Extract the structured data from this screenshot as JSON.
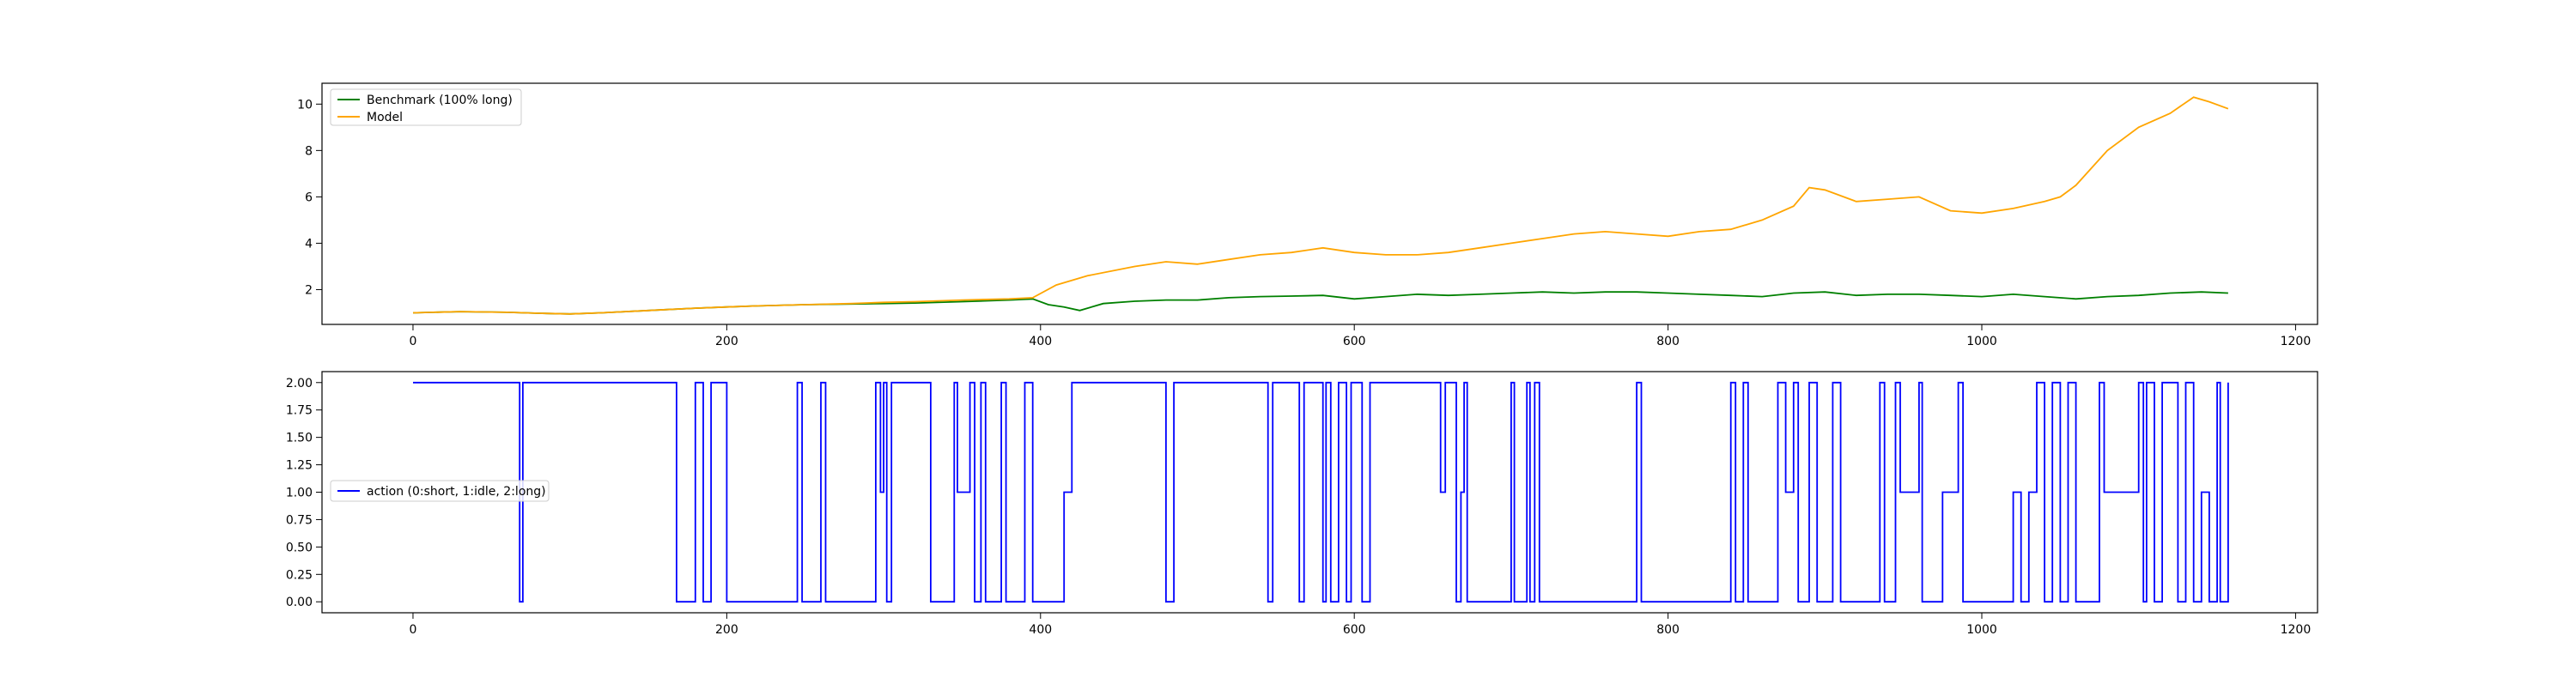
{
  "chart_data": [
    {
      "type": "line",
      "title": "",
      "xlabel": "",
      "ylabel": "",
      "xlim": [
        -58,
        1214
      ],
      "ylim": [
        0.5,
        10.9
      ],
      "xticks": [
        0,
        200,
        400,
        600,
        800,
        1000,
        1200
      ],
      "yticks": [
        2,
        4,
        6,
        8,
        10
      ],
      "xtick_labels": [
        "0",
        "200",
        "400",
        "600",
        "800",
        "1000",
        "1200"
      ],
      "ytick_labels": [
        "2",
        "4",
        "6",
        "8",
        "10"
      ],
      "grid": false,
      "legend_position": "upper-left",
      "series": [
        {
          "name": "Benchmark (100% long)",
          "color": "#008000",
          "x": [
            0,
            30,
            60,
            80,
            100,
            120,
            150,
            180,
            200,
            220,
            250,
            280,
            300,
            320,
            350,
            380,
            395,
            405,
            415,
            425,
            440,
            460,
            480,
            500,
            520,
            540,
            560,
            580,
            600,
            620,
            640,
            660,
            680,
            700,
            720,
            740,
            760,
            780,
            800,
            820,
            840,
            860,
            880,
            900,
            920,
            940,
            960,
            980,
            1000,
            1020,
            1040,
            1060,
            1080,
            1100,
            1120,
            1140,
            1157
          ],
          "values": [
            1.0,
            1.05,
            1.02,
            0.98,
            0.95,
            1.0,
            1.1,
            1.2,
            1.25,
            1.3,
            1.35,
            1.38,
            1.4,
            1.42,
            1.48,
            1.55,
            1.6,
            1.35,
            1.25,
            1.1,
            1.4,
            1.5,
            1.55,
            1.55,
            1.65,
            1.7,
            1.72,
            1.75,
            1.6,
            1.7,
            1.8,
            1.75,
            1.8,
            1.85,
            1.9,
            1.85,
            1.9,
            1.9,
            1.85,
            1.8,
            1.75,
            1.7,
            1.85,
            1.9,
            1.75,
            1.8,
            1.8,
            1.75,
            1.7,
            1.8,
            1.7,
            1.6,
            1.7,
            1.75,
            1.85,
            1.9,
            1.85
          ]
        },
        {
          "name": "Model",
          "color": "#ffa500",
          "x": [
            0,
            30,
            60,
            80,
            100,
            120,
            150,
            180,
            200,
            220,
            250,
            280,
            300,
            320,
            350,
            380,
            395,
            410,
            430,
            460,
            480,
            500,
            520,
            540,
            560,
            580,
            600,
            620,
            640,
            660,
            680,
            700,
            720,
            740,
            760,
            780,
            800,
            820,
            840,
            860,
            880,
            890,
            900,
            920,
            940,
            960,
            980,
            1000,
            1020,
            1040,
            1050,
            1060,
            1080,
            1100,
            1120,
            1135,
            1145,
            1157
          ],
          "values": [
            1.0,
            1.05,
            1.02,
            0.98,
            0.95,
            1.0,
            1.1,
            1.2,
            1.25,
            1.3,
            1.35,
            1.4,
            1.45,
            1.48,
            1.55,
            1.6,
            1.65,
            2.2,
            2.6,
            3.0,
            3.2,
            3.1,
            3.3,
            3.5,
            3.6,
            3.8,
            3.6,
            3.5,
            3.5,
            3.6,
            3.8,
            4.0,
            4.2,
            4.4,
            4.5,
            4.4,
            4.3,
            4.5,
            4.6,
            5.0,
            5.6,
            6.4,
            6.3,
            5.8,
            5.9,
            6.0,
            5.4,
            5.3,
            5.5,
            5.8,
            6.0,
            6.5,
            8.0,
            9.0,
            9.6,
            10.3,
            10.1,
            9.8
          ]
        }
      ]
    },
    {
      "type": "line",
      "title": "",
      "xlabel": "",
      "ylabel": "",
      "xlim": [
        -58,
        1214
      ],
      "ylim": [
        -0.1,
        2.1
      ],
      "xticks": [
        0,
        200,
        400,
        600,
        800,
        1000,
        1200
      ],
      "yticks": [
        0.0,
        0.25,
        0.5,
        0.75,
        1.0,
        1.25,
        1.5,
        1.75,
        2.0
      ],
      "xtick_labels": [
        "0",
        "200",
        "400",
        "600",
        "800",
        "1000",
        "1200"
      ],
      "ytick_labels": [
        "0.00",
        "0.25",
        "0.50",
        "0.75",
        "1.00",
        "1.25",
        "1.50",
        "1.75",
        "2.00"
      ],
      "grid": false,
      "legend_position": "center-left",
      "series": [
        {
          "name": "action (0:short, 1:idle, 2:long)",
          "color": "#0000ff",
          "step": true,
          "x": [
            0,
            68,
            70,
            168,
            180,
            185,
            190,
            200,
            245,
            248,
            260,
            263,
            295,
            298,
            300,
            302,
            305,
            330,
            345,
            347,
            355,
            358,
            362,
            365,
            375,
            378,
            390,
            395,
            415,
            420,
            480,
            485,
            545,
            548,
            565,
            568,
            580,
            582,
            585,
            590,
            595,
            598,
            605,
            610,
            655,
            658,
            665,
            668,
            670,
            672,
            700,
            702,
            710,
            712,
            715,
            718,
            780,
            783,
            840,
            843,
            848,
            851,
            870,
            875,
            880,
            883,
            890,
            895,
            905,
            910,
            935,
            938,
            945,
            948,
            960,
            962,
            975,
            985,
            988,
            1020,
            1025,
            1030,
            1035,
            1040,
            1045,
            1050,
            1055,
            1060,
            1075,
            1078,
            1100,
            1103,
            1105,
            1110,
            1115,
            1125,
            1130,
            1135,
            1140,
            1145,
            1150,
            1152,
            1157
          ],
          "values": [
            2,
            0,
            2,
            0,
            2,
            0,
            2,
            0,
            2,
            0,
            2,
            0,
            2,
            1,
            2,
            0,
            2,
            0,
            2,
            1,
            2,
            0,
            2,
            0,
            2,
            0,
            2,
            0,
            1,
            2,
            0,
            2,
            0,
            2,
            0,
            2,
            0,
            2,
            0,
            2,
            0,
            2,
            0,
            2,
            1,
            2,
            0,
            1,
            2,
            0,
            2,
            0,
            2,
            0,
            2,
            0,
            2,
            0,
            2,
            0,
            2,
            0,
            2,
            1,
            2,
            0,
            2,
            0,
            2,
            0,
            2,
            0,
            2,
            1,
            2,
            0,
            1,
            2,
            0,
            1,
            0,
            1,
            2,
            0,
            2,
            0,
            2,
            0,
            2,
            1,
            2,
            0,
            2,
            0,
            2,
            0,
            2,
            0,
            1,
            0,
            2,
            0,
            2
          ]
        }
      ]
    }
  ]
}
